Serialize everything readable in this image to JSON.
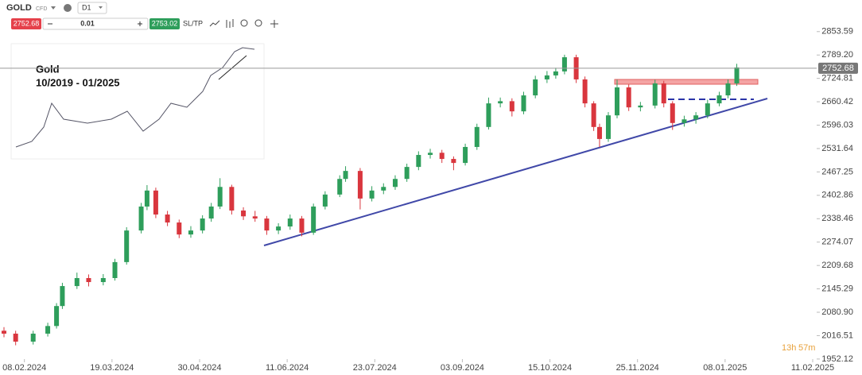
{
  "toolbar": {
    "symbol": "GOLD",
    "instrument_type": "CFD",
    "timeframe": "D1",
    "sell_price": "2752.68",
    "quantity": "0.01",
    "buy_price": "2753.02",
    "sl_tp": "SL/TP"
  },
  "inset": {
    "title": "Gold",
    "period": "10/2019 - 01/2025"
  },
  "countdown": {
    "hours": "13h",
    "minutes": "57m"
  },
  "chart_data": {
    "type": "candlestick",
    "x": [
      0,
      4,
      10,
      15,
      18,
      20,
      25,
      29,
      34,
      38,
      42,
      47,
      49,
      52,
      56,
      60,
      64,
      68,
      71,
      74,
      78,
      82,
      86,
      90,
      94,
      98,
      102,
      106,
      110,
      115,
      117,
      122,
      126,
      130,
      134,
      138,
      142,
      146,
      150,
      154,
      158,
      162,
      166,
      170,
      174,
      178,
      182,
      186,
      189,
      192,
      196,
      199,
      202,
      204,
      207,
      210,
      214,
      218,
      223,
      226,
      229,
      233,
      237,
      241,
      245,
      248,
      251
    ],
    "open": [
      2030,
      2022,
      2000,
      2022,
      2043,
      2098,
      2153,
      2175,
      2164,
      2175,
      2219,
      2306,
      2372,
      2416,
      2350,
      2328,
      2295,
      2306,
      2339,
      2372,
      2426,
      2361,
      2345,
      2339,
      2306,
      2317,
      2339,
      2300,
      2372,
      2405,
      2448,
      2470,
      2394,
      2416,
      2426,
      2448,
      2481,
      2514,
      2520,
      2503,
      2492,
      2536,
      2591,
      2656,
      2662,
      2634,
      2678,
      2722,
      2733,
      2744,
      2783,
      2722,
      2656,
      2591,
      2558,
      2623,
      2700,
      2645,
      2650,
      2711,
      2656,
      2602,
      2612,
      2623,
      2656,
      2678,
      2711
    ],
    "high": [
      2040,
      2030,
      2030,
      2052,
      2106,
      2162,
      2190,
      2185,
      2186,
      2228,
      2315,
      2382,
      2431,
      2424,
      2360,
      2336,
      2318,
      2348,
      2382,
      2450,
      2432,
      2370,
      2360,
      2346,
      2326,
      2350,
      2346,
      2380,
      2414,
      2458,
      2483,
      2478,
      2428,
      2436,
      2458,
      2490,
      2524,
      2531,
      2528,
      2510,
      2545,
      2600,
      2672,
      2672,
      2670,
      2688,
      2732,
      2745,
      2754,
      2790,
      2790,
      2730,
      2662,
      2600,
      2632,
      2721,
      2708,
      2660,
      2721,
      2718,
      2662,
      2622,
      2632,
      2666,
      2688,
      2722,
      2765
    ],
    "low": [
      2012,
      1990,
      1992,
      2014,
      2036,
      2090,
      2145,
      2152,
      2155,
      2168,
      2212,
      2298,
      2362,
      2340,
      2318,
      2285,
      2286,
      2298,
      2330,
      2365,
      2350,
      2335,
      2330,
      2294,
      2296,
      2308,
      2290,
      2294,
      2364,
      2398,
      2440,
      2364,
      2386,
      2406,
      2418,
      2440,
      2472,
      2504,
      2492,
      2472,
      2485,
      2528,
      2584,
      2645,
      2620,
      2626,
      2670,
      2712,
      2724,
      2736,
      2712,
      2645,
      2580,
      2536,
      2550,
      2615,
      2635,
      2634,
      2642,
      2645,
      2583,
      2592,
      2600,
      2615,
      2648,
      2670,
      2704
    ],
    "close": [
      2022,
      2000,
      2022,
      2043,
      2098,
      2153,
      2175,
      2164,
      2175,
      2219,
      2306,
      2372,
      2416,
      2350,
      2328,
      2295,
      2306,
      2339,
      2372,
      2426,
      2361,
      2345,
      2339,
      2306,
      2317,
      2339,
      2300,
      2372,
      2405,
      2448,
      2470,
      2394,
      2416,
      2426,
      2448,
      2481,
      2514,
      2520,
      2503,
      2492,
      2536,
      2591,
      2656,
      2662,
      2634,
      2678,
      2722,
      2733,
      2744,
      2783,
      2722,
      2656,
      2591,
      2558,
      2623,
      2700,
      2645,
      2650,
      2711,
      2656,
      2602,
      2612,
      2623,
      2656,
      2678,
      2711,
      2755
    ],
    "up_color": "#2e9e5b",
    "down_color": "#d9363e",
    "current_price": 2752.68,
    "xlim": [
      0,
      280
    ],
    "xticks": [
      {
        "value": 7,
        "label": "08.02.2024"
      },
      {
        "value": 37,
        "label": "19.03.2024"
      },
      {
        "value": 67,
        "label": "30.04.2024"
      },
      {
        "value": 97,
        "label": "11.06.2024"
      },
      {
        "value": 127,
        "label": "23.07.2024"
      },
      {
        "value": 157,
        "label": "03.09.2024"
      },
      {
        "value": 187,
        "label": "15.10.2024"
      },
      {
        "value": 217,
        "label": "25.11.2024"
      },
      {
        "value": 247,
        "label": "08.01.2025"
      },
      {
        "value": 277,
        "label": "11.02.2025"
      }
    ],
    "ylim": [
      1930,
      2875
    ],
    "yticks": [
      2853.59,
      {
        "value": 2789.2,
        "label": "2789.20"
      },
      2724.81,
      2660.42,
      2596.03,
      2531.64,
      2467.25,
      2402.86,
      2338.46,
      2274.07,
      2209.68,
      2145.29,
      {
        "value": 2080.9,
        "label": "2080.90"
      },
      2016.51,
      1952.12
    ]
  }
}
